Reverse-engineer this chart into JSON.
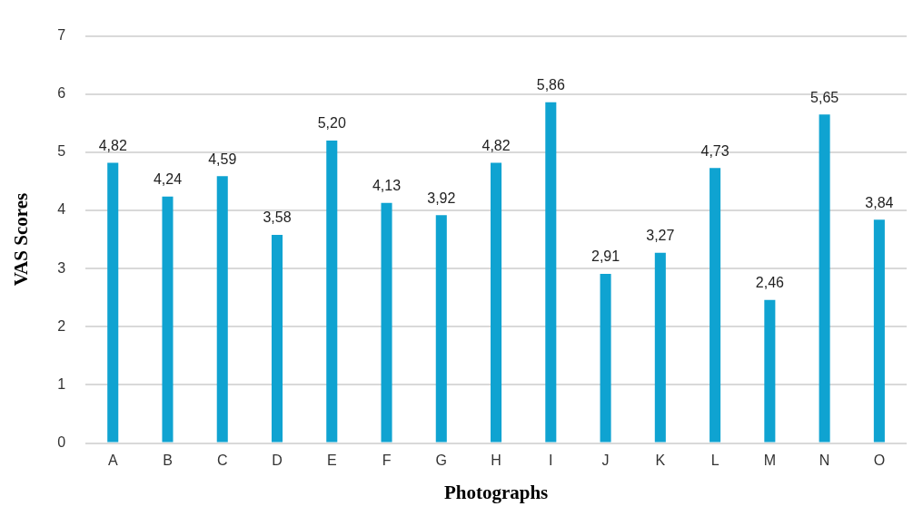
{
  "chart_data": {
    "type": "bar",
    "xlabel": "Photographs",
    "ylabel": "VAS Scores",
    "categories": [
      "A",
      "B",
      "C",
      "D",
      "E",
      "F",
      "G",
      "H",
      "I",
      "J",
      "K",
      "L",
      "M",
      "N",
      "O"
    ],
    "values": [
      4.82,
      4.24,
      4.59,
      3.58,
      5.2,
      4.13,
      3.92,
      4.82,
      5.86,
      2.91,
      3.27,
      4.73,
      2.46,
      5.65,
      3.84
    ],
    "value_labels": [
      "4,82",
      "4,24",
      "4,59",
      "3,58",
      "5,20",
      "4,13",
      "3,92",
      "4,82",
      "5,86",
      "2,91",
      "3,27",
      "4,73",
      "2,46",
      "5,65",
      "3,84"
    ],
    "color": "#0fa3d1",
    "ylim": [
      0,
      7
    ],
    "yticks": [
      0,
      1,
      2,
      3,
      4,
      5,
      6,
      7
    ],
    "grid": "y"
  }
}
